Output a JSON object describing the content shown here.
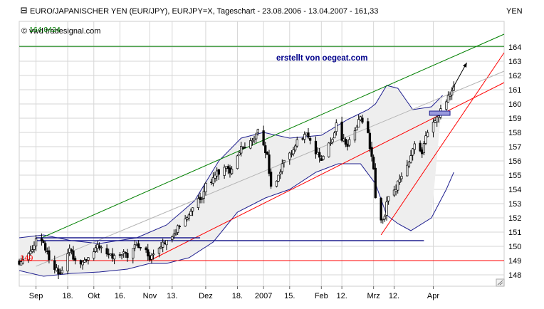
{
  "header": {
    "title": "EURO/JAPANISCHER YEN (EUR/JPY), EURJPY=X, Tageschart - 23.08.2006 - 13.04.2007 - 161,33",
    "currency": "YEN"
  },
  "watermark": "© vwd tradesignal.com",
  "credit": "erstellt von oegeat.com",
  "level_labels": {
    "top": "164,0424",
    "bottom": "149"
  },
  "chart_data": {
    "type": "candlestick",
    "title": "EURO/JAPANISCHER YEN (EUR/JPY), EURJPY=X, Tageschart - 23.08.2006 - 13.04.2007 - 161,33",
    "ylabel": "YEN",
    "ylim": [
      147.2,
      165.8
    ],
    "y_ticks": [
      148,
      149,
      150,
      151,
      152,
      153,
      154,
      155,
      156,
      157,
      158,
      159,
      160,
      161,
      162,
      163,
      164
    ],
    "x_tick_labels": [
      "Sep",
      "18.",
      "Okt",
      "16.",
      "Nov",
      "13.",
      "Dez",
      "18.",
      "2007",
      "15.",
      "Feb",
      "12.",
      "Mrz",
      "12.",
      "Apr"
    ],
    "x_tick_dates": [
      "2006-09-01",
      "2006-09-18",
      "2006-10-02",
      "2006-10-16",
      "2006-11-01",
      "2006-11-13",
      "2006-12-01",
      "2006-12-18",
      "2007-01-01",
      "2007-01-15",
      "2007-02-01",
      "2007-02-12",
      "2007-03-01",
      "2007-03-12",
      "2007-04-02"
    ],
    "x_range": [
      "2006-08-23",
      "2007-05-10"
    ],
    "grid": true,
    "price_path": [
      [
        "2006-08-23",
        149.0
      ],
      [
        "2006-08-28",
        149.4
      ],
      [
        "2006-08-31",
        150.2
      ],
      [
        "2006-09-04",
        150.6
      ],
      [
        "2006-09-07",
        149.5
      ],
      [
        "2006-09-11",
        148.6
      ],
      [
        "2006-09-13",
        148.0
      ],
      [
        "2006-09-15",
        148.6
      ],
      [
        "2006-09-19",
        149.6
      ],
      [
        "2006-09-22",
        149.1
      ],
      [
        "2006-09-27",
        148.8
      ],
      [
        "2006-10-02",
        149.7
      ],
      [
        "2006-10-06",
        150.1
      ],
      [
        "2006-10-11",
        149.3
      ],
      [
        "2006-10-16",
        149.6
      ],
      [
        "2006-10-20",
        149.2
      ],
      [
        "2006-10-25",
        150.2
      ],
      [
        "2006-10-30",
        149.8
      ],
      [
        "2006-11-01",
        149.2
      ],
      [
        "2006-11-06",
        150.0
      ],
      [
        "2006-11-10",
        150.6
      ],
      [
        "2006-11-15",
        151.1
      ],
      [
        "2006-11-20",
        151.8
      ],
      [
        "2006-11-24",
        152.6
      ],
      [
        "2006-11-28",
        153.3
      ],
      [
        "2006-12-01",
        154.2
      ],
      [
        "2006-12-06",
        154.9
      ],
      [
        "2006-12-11",
        155.6
      ],
      [
        "2006-12-14",
        155.0
      ],
      [
        "2006-12-18",
        156.4
      ],
      [
        "2006-12-22",
        157.2
      ],
      [
        "2006-12-28",
        157.8
      ],
      [
        "2006-12-29",
        158.0
      ],
      [
        "2007-01-03",
        156.2
      ],
      [
        "2007-01-05",
        154.2
      ],
      [
        "2007-01-09",
        155.0
      ],
      [
        "2007-01-12",
        155.8
      ],
      [
        "2007-01-16",
        156.6
      ],
      [
        "2007-01-19",
        157.4
      ],
      [
        "2007-01-24",
        157.8
      ],
      [
        "2007-01-29",
        156.6
      ],
      [
        "2007-02-01",
        155.8
      ],
      [
        "2007-02-06",
        157.4
      ],
      [
        "2007-02-09",
        158.4
      ],
      [
        "2007-02-14",
        157.0
      ],
      [
        "2007-02-19",
        158.2
      ],
      [
        "2007-02-22",
        159.2
      ],
      [
        "2007-02-26",
        157.8
      ],
      [
        "2007-03-01",
        155.2
      ],
      [
        "2007-03-02",
        153.6
      ],
      [
        "2007-03-05",
        151.6
      ],
      [
        "2007-03-07",
        152.2
      ],
      [
        "2007-03-09",
        153.6
      ],
      [
        "2007-03-13",
        154.0
      ],
      [
        "2007-03-16",
        155.0
      ],
      [
        "2007-03-20",
        156.2
      ],
      [
        "2007-03-23",
        157.2
      ],
      [
        "2007-03-27",
        156.4
      ],
      [
        "2007-03-29",
        157.8
      ],
      [
        "2007-04-02",
        158.8
      ],
      [
        "2007-04-05",
        159.4
      ],
      [
        "2007-04-09",
        160.4
      ],
      [
        "2007-04-12",
        161.0
      ],
      [
        "2007-04-13",
        161.33
      ]
    ],
    "bollinger_upper": [
      [
        "2006-08-23",
        150.6
      ],
      [
        "2006-09-05",
        150.8
      ],
      [
        "2006-09-20",
        150.4
      ],
      [
        "2006-10-05",
        150.2
      ],
      [
        "2006-10-25",
        150.6
      ],
      [
        "2006-11-10",
        151.5
      ],
      [
        "2006-11-25",
        153.2
      ],
      [
        "2006-12-08",
        156.0
      ],
      [
        "2006-12-20",
        157.6
      ],
      [
        "2007-01-01",
        158.0
      ],
      [
        "2007-01-15",
        157.6
      ],
      [
        "2007-02-01",
        157.8
      ],
      [
        "2007-02-15",
        158.9
      ],
      [
        "2007-02-26",
        159.6
      ],
      [
        "2007-03-02",
        160.0
      ],
      [
        "2007-03-08",
        161.3
      ],
      [
        "2007-03-14",
        161.1
      ],
      [
        "2007-03-22",
        159.6
      ],
      [
        "2007-04-01",
        159.8
      ],
      [
        "2007-04-07",
        160.6
      ]
    ],
    "bollinger_lower": [
      [
        "2006-08-23",
        148.3
      ],
      [
        "2006-09-05",
        147.9
      ],
      [
        "2006-09-20",
        148.1
      ],
      [
        "2006-10-05",
        148.2
      ],
      [
        "2006-10-20",
        148.4
      ],
      [
        "2006-11-01",
        148.8
      ],
      [
        "2006-11-10",
        148.8
      ],
      [
        "2006-11-22",
        149.2
      ],
      [
        "2006-12-05",
        150.3
      ],
      [
        "2006-12-18",
        152.4
      ],
      [
        "2007-01-02",
        153.4
      ],
      [
        "2007-01-15",
        154.0
      ],
      [
        "2007-01-29",
        155.2
      ],
      [
        "2007-02-10",
        155.8
      ],
      [
        "2007-02-22",
        155.8
      ],
      [
        "2007-03-02",
        154.4
      ],
      [
        "2007-03-08",
        152.2
      ],
      [
        "2007-03-14",
        151.6
      ],
      [
        "2007-03-21",
        151.1
      ],
      [
        "2007-04-01",
        152.0
      ],
      [
        "2007-04-09",
        154.0
      ],
      [
        "2007-04-13",
        155.2
      ]
    ],
    "trend_lines": [
      {
        "name": "green_upper",
        "color": "#008000",
        "points": [
          [
            "2006-09-04",
            150.6
          ],
          [
            "2007-05-10",
            164.9
          ]
        ]
      },
      {
        "name": "green_horizontal",
        "color": "#008000",
        "points": [
          [
            "2006-08-23",
            164.0424
          ],
          [
            "2007-05-10",
            164.0424
          ]
        ]
      },
      {
        "name": "red_horizontal",
        "color": "#ff0000",
        "points": [
          [
            "2006-08-23",
            149.0
          ],
          [
            "2007-05-10",
            149.0
          ]
        ]
      },
      {
        "name": "red_trend_long",
        "color": "#ff0000",
        "points": [
          [
            "2006-11-01",
            149.0
          ],
          [
            "2007-05-10",
            161.5
          ]
        ]
      },
      {
        "name": "red_trend_steep",
        "color": "#ff0000",
        "points": [
          [
            "2007-03-05",
            150.8
          ],
          [
            "2007-05-10",
            163.6
          ]
        ]
      },
      {
        "name": "grey_trend",
        "color": "#b4b4b4",
        "points": [
          [
            "2006-09-01",
            148.6
          ],
          [
            "2007-05-10",
            162.3
          ]
        ]
      },
      {
        "name": "blue_support",
        "color": "#1f1f8f",
        "points": [
          [
            "2006-09-01",
            150.4
          ],
          [
            "2007-03-28",
            150.4
          ]
        ]
      },
      {
        "name": "blue_resistance",
        "color": "#1f1f8f",
        "points": [
          [
            "2006-09-01",
            150.6
          ],
          [
            "2006-11-28",
            150.6
          ]
        ]
      }
    ],
    "arrow": {
      "from": [
        "2007-04-12",
        161.0
      ],
      "to": [
        "2007-04-20",
        162.9
      ]
    },
    "box": {
      "from": [
        "2007-03-31",
        159.2
      ],
      "to": [
        "2007-04-11",
        159.5
      ]
    }
  }
}
